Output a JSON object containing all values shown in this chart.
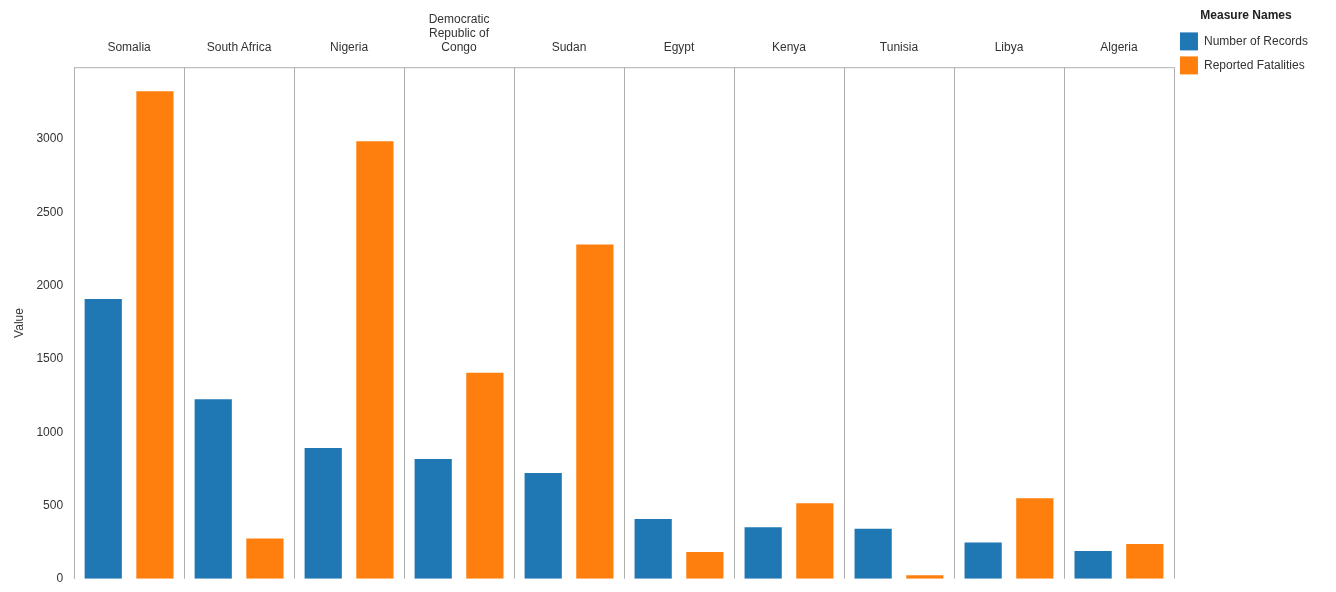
{
  "chart_data": {
    "type": "bar",
    "ylabel": "Value",
    "legend_title": "Measure Names",
    "legend": "top right",
    "grid": "x",
    "categories": [
      "Somalia",
      "South Africa",
      "Nigeria",
      "Democratic Republic of Congo",
      "Sudan",
      "Egypt",
      "Kenya",
      "Tunisia",
      "Libya",
      "Algeria"
    ],
    "series": [
      {
        "name": "Number of Records",
        "color": "#1f77b4",
        "values": [
          1908,
          1225,
          893,
          817,
          721,
          408,
          352,
          342,
          247,
          190
        ]
      },
      {
        "name": "Reported Fatalities",
        "color": "#ff7f0e",
        "values": [
          3326,
          275,
          2985,
          1406,
          2281,
          183,
          515,
          24,
          549,
          237
        ]
      }
    ],
    "ylim": [
      0,
      3490
    ],
    "yticks": [
      0,
      500,
      1000,
      1500,
      2000,
      2500,
      3000
    ]
  }
}
